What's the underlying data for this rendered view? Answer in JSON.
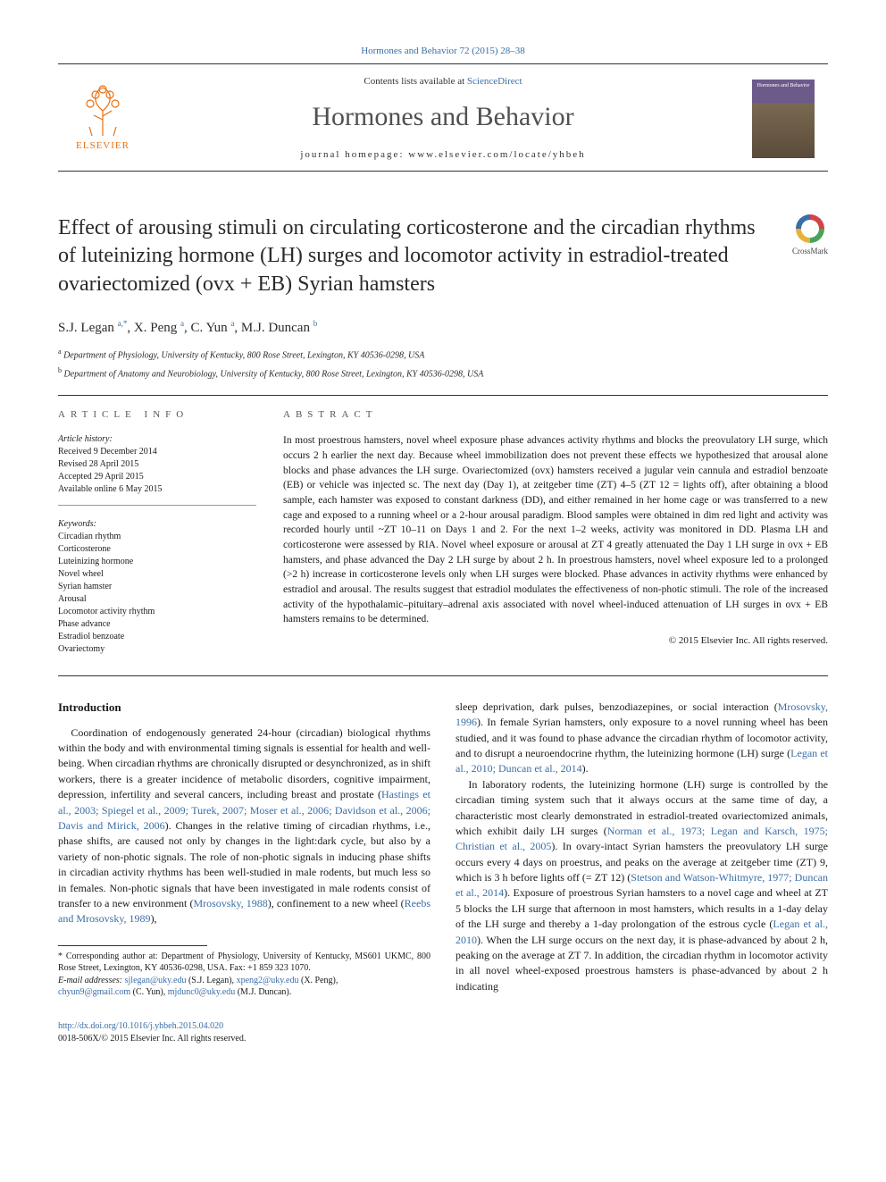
{
  "journal_ref": "Hormones and Behavior 72 (2015) 28–38",
  "masthead": {
    "contents_prefix": "Contents lists available at ",
    "contents_link": "ScienceDirect",
    "journal_name": "Hormones and Behavior",
    "homepage_prefix": "journal homepage: ",
    "homepage_url": "www.elsevier.com/locate/yhbeh",
    "publisher_name": "ELSEVIER",
    "cover_text": "Hormones and Behavior"
  },
  "elsevier_tree_color": "#ea7010",
  "title": "Effect of arousing stimuli on circulating corticosterone and the circadian rhythms of luteinizing hormone (LH) surges and locomotor activity in estradiol-treated ovariectomized (ovx + EB) Syrian hamsters",
  "crossmark_label": "CrossMark",
  "authors_html": "S.J. Legan <sup>a,*</sup>, X. Peng <sup>a</sup>, C. Yun <sup>a</sup>, M.J. Duncan <sup>b</sup>",
  "affiliations": [
    {
      "sup": "a",
      "text": " Department of Physiology, University of Kentucky, 800 Rose Street, Lexington, KY 40536-0298, USA"
    },
    {
      "sup": "b",
      "text": " Department of Anatomy and Neurobiology, University of Kentucky, 800 Rose Street, Lexington, KY 40536-0298, USA"
    }
  ],
  "article_info": {
    "heading": "article info",
    "history_heading": "Article history:",
    "history": [
      "Received 9 December 2014",
      "Revised 28 April 2015",
      "Accepted 29 April 2015",
      "Available online 6 May 2015"
    ],
    "keywords_heading": "Keywords:",
    "keywords": [
      "Circadian rhythm",
      "Corticosterone",
      "Luteinizing hormone",
      "Novel wheel",
      "Syrian hamster",
      "Arousal",
      "Locomotor activity rhythm",
      "Phase advance",
      "Estradiol benzoate",
      "Ovariectomy"
    ]
  },
  "abstract": {
    "heading": "abstract",
    "text": "In most proestrous hamsters, novel wheel exposure phase advances activity rhythms and blocks the preovulatory LH surge, which occurs 2 h earlier the next day. Because wheel immobilization does not prevent these effects we hypothesized that arousal alone blocks and phase advances the LH surge. Ovariectomized (ovx) hamsters received a jugular vein cannula and estradiol benzoate (EB) or vehicle was injected sc. The next day (Day 1), at zeitgeber time (ZT) 4–5 (ZT 12 = lights off), after obtaining a blood sample, each hamster was exposed to constant darkness (DD), and either remained in her home cage or was transferred to a new cage and exposed to a running wheel or a 2-hour arousal paradigm. Blood samples were obtained in dim red light and activity was recorded hourly until ~ZT 10–11 on Days 1 and 2. For the next 1–2 weeks, activity was monitored in DD. Plasma LH and corticosterone were assessed by RIA. Novel wheel exposure or arousal at ZT 4 greatly attenuated the Day 1 LH surge in ovx + EB hamsters, and phase advanced the Day 2 LH surge by about 2 h. In proestrous hamsters, novel wheel exposure led to a prolonged (>2 h) increase in corticosterone levels only when LH surges were blocked. Phase advances in activity rhythms were enhanced by estradiol and arousal. The results suggest that estradiol modulates the effectiveness of non-photic stimuli. The role of the increased activity of the hypothalamic–pituitary–adrenal axis associated with novel wheel-induced attenuation of LH surges in ovx + EB hamsters remains to be determined.",
    "copyright": "© 2015 Elsevier Inc. All rights reserved."
  },
  "intro_heading": "Introduction",
  "intro_para1_pre": "Coordination of endogenously generated 24-hour (circadian) biological rhythms within the body and with environmental timing signals is essential for health and well-being. When circadian rhythms are chronically disrupted or desynchronized, as in shift workers, there is a greater incidence of metabolic disorders, cognitive impairment, depression, infertility and several cancers, including breast and prostate (",
  "intro_para1_link": "Hastings et al., 2003; Spiegel et al., 2009; Turek, 2007; Moser et al., 2006; Davidson et al., 2006; Davis and Mirick, 2006",
  "intro_para1_mid1": "). Changes in the relative timing of circadian rhythms, i.e., phase shifts, are caused not only by changes in the light:dark cycle, but also by a variety of non-photic signals. The role of non-photic signals in inducing phase shifts in circadian activity rhythms has been well-studied in male rodents, but much less so in females. Non-photic signals that have been investigated in male rodents consist of transfer to a new environment (",
  "intro_para1_link2": "Mrosovsky, 1988",
  "intro_para1_mid2": "), confinement to a new wheel (",
  "intro_para1_link3": "Reebs and Mrosovsky, 1989",
  "intro_para1_post": "),",
  "intro_cont_pre": "sleep deprivation, dark pulses, benzodiazepines, or social interaction (",
  "intro_cont_link": "Mrosovsky, 1996",
  "intro_cont_mid": "). In female Syrian hamsters, only exposure to a novel running wheel has been studied, and it was found to phase advance the circadian rhythm of locomotor activity, and to disrupt a neuroendocrine rhythm, the luteinizing hormone (LH) surge (",
  "intro_cont_link2": "Legan et al., 2010; Duncan et al., 2014",
  "intro_cont_post": ").",
  "intro_para2_pre": "In laboratory rodents, the luteinizing hormone (LH) surge is controlled by the circadian timing system such that it always occurs at the same time of day, a characteristic most clearly demonstrated in estradiol-treated ovariectomized animals, which exhibit daily LH surges (",
  "intro_para2_link1": "Norman et al., 1973; Legan and Karsch, 1975; Christian et al., 2005",
  "intro_para2_mid1": "). In ovary-intact Syrian hamsters the preovulatory LH surge occurs every 4 days on proestrus, and peaks on the average at zeitgeber time (ZT) 9, which is 3 h before lights off (= ZT 12) (",
  "intro_para2_link2": "Stetson and Watson-Whitmyre, 1977; Duncan et al., 2014",
  "intro_para2_mid2": "). Exposure of proestrous Syrian hamsters to a novel cage and wheel at ZT 5 blocks the LH surge that afternoon in most hamsters, which results in a 1-day delay of the LH surge and thereby a 1-day prolongation of the estrous cycle (",
  "intro_para2_link3": "Legan et al., 2010",
  "intro_para2_post": "). When the LH surge occurs on the next day, it is phase-advanced by about 2 h, peaking on the average at ZT 7. In addition, the circadian rhythm in locomotor activity in all novel wheel-exposed proestrous hamsters is phase-advanced by about 2 h indicating",
  "footnotes": {
    "corr_pre": "* Corresponding author at: Department of Physiology, University of Kentucky, MS601 UKMC, 800 Rose Street, Lexington, KY 40536-0298, USA. Fax: +1 859 323 1070.",
    "email_label": "E-mail addresses: ",
    "emails": [
      {
        "addr": "sjlegan@uky.edu",
        "who": " (S.J. Legan), "
      },
      {
        "addr": "xpeng2@uky.edu",
        "who": " (X. Peng),"
      }
    ],
    "emails2": [
      {
        "addr": "chyun9@gmail.com",
        "who": " (C. Yun), "
      },
      {
        "addr": "mjdunc0@uky.edu",
        "who": " (M.J. Duncan)."
      }
    ]
  },
  "footer": {
    "doi": "http://dx.doi.org/10.1016/j.yhbeh.2015.04.020",
    "issn_line": "0018-506X/© 2015 Elsevier Inc. All rights reserved."
  },
  "colors": {
    "link": "#3a6ea5",
    "text": "#1a1a1a"
  }
}
